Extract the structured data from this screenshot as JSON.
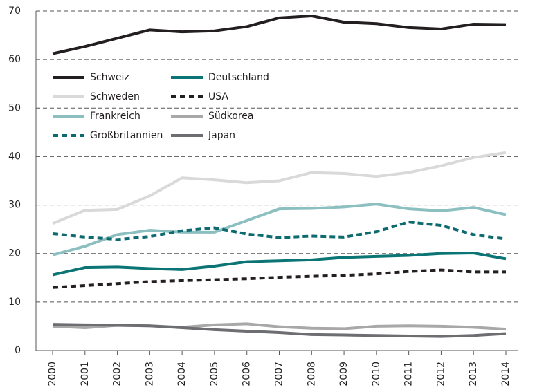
{
  "chart_data": {
    "type": "line",
    "categories": [
      "2000",
      "2001",
      "2002",
      "2003",
      "2004",
      "2005",
      "2006",
      "2007",
      "2008",
      "2009",
      "2010",
      "2011",
      "2012",
      "2013",
      "2014"
    ],
    "ylim": [
      0,
      70
    ],
    "yticks": [
      0,
      10,
      20,
      30,
      40,
      50,
      60,
      70
    ],
    "grid": true,
    "legend": "upper left",
    "series": [
      {
        "name": "Schweiz",
        "color": "#231f20",
        "dash": false,
        "values": [
          61.2,
          62.7,
          64.4,
          66.1,
          65.7,
          65.9,
          66.8,
          68.6,
          69.0,
          67.7,
          67.4,
          66.6,
          66.3,
          67.3,
          67.2
        ]
      },
      {
        "name": "Schweden",
        "color": "#d9d9d9",
        "dash": false,
        "values": [
          26.2,
          28.9,
          29.1,
          31.9,
          35.6,
          35.2,
          34.6,
          35.0,
          36.7,
          36.5,
          35.9,
          36.7,
          38.1,
          39.8,
          40.8
        ]
      },
      {
        "name": "Frankreich",
        "color": "#8cbfc0",
        "dash": false,
        "values": [
          19.7,
          21.5,
          23.9,
          24.8,
          24.4,
          24.4,
          26.8,
          29.2,
          29.3,
          29.6,
          30.2,
          29.2,
          28.8,
          29.5,
          28.0
        ]
      },
      {
        "name": "Großbritannien",
        "color": "#0d6a6e",
        "dash": true,
        "values": [
          24.1,
          23.4,
          22.9,
          23.5,
          24.7,
          25.3,
          24.0,
          23.3,
          23.6,
          23.4,
          24.5,
          26.5,
          25.8,
          23.9,
          23.0
        ]
      },
      {
        "name": "Deutschland",
        "color": "#0b7474",
        "dash": false,
        "values": [
          15.6,
          17.1,
          17.2,
          16.9,
          16.7,
          17.4,
          18.3,
          18.5,
          18.7,
          19.2,
          19.4,
          19.6,
          20.0,
          20.1,
          18.9
        ]
      },
      {
        "name": "USA",
        "color": "#231f20",
        "dash": true,
        "values": [
          13.0,
          13.4,
          13.8,
          14.2,
          14.4,
          14.6,
          14.8,
          15.1,
          15.3,
          15.5,
          15.8,
          16.3,
          16.6,
          16.2,
          16.2
        ]
      },
      {
        "name": "Südkorea",
        "color": "#a8a8a8",
        "dash": false,
        "values": [
          5.0,
          4.7,
          5.2,
          5.1,
          4.8,
          5.3,
          5.5,
          4.9,
          4.6,
          4.5,
          5.0,
          5.1,
          5.0,
          4.8,
          4.4
        ]
      },
      {
        "name": "Japan",
        "color": "#6d6e71",
        "dash": false,
        "values": [
          5.4,
          5.3,
          5.2,
          5.1,
          4.7,
          4.3,
          4.0,
          3.7,
          3.3,
          3.2,
          3.1,
          3.0,
          2.9,
          3.1,
          3.5
        ]
      }
    ]
  }
}
